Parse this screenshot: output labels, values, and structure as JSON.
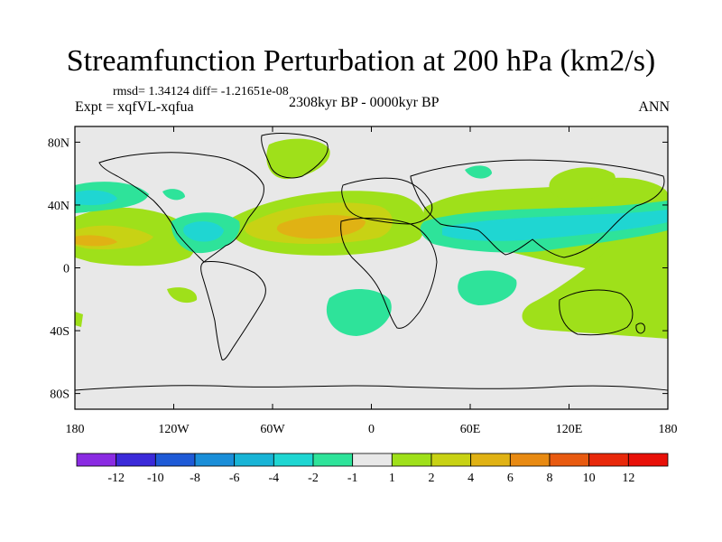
{
  "title": "Streamfunction Perturbation at 200 hPa (km2/s)",
  "stats": "rmsd= 1.34124 diff= -1.21651e-08",
  "experiment": "Expt = xqfVL-xqfua",
  "period": "2308kyr BP - 0000kyr BP",
  "season": "ANN",
  "map_data": {
    "projection": "cylindrical-equidistant",
    "lon_range": [
      -180,
      180
    ],
    "lat_range": [
      -90,
      90
    ],
    "x_ticks": [
      {
        "value": -180,
        "label": "180"
      },
      {
        "value": -120,
        "label": "120W"
      },
      {
        "value": -60,
        "label": "60W"
      },
      {
        "value": 0,
        "label": "0"
      },
      {
        "value": 60,
        "label": "60E"
      },
      {
        "value": 120,
        "label": "120E"
      },
      {
        "value": 180,
        "label": "180"
      }
    ],
    "y_ticks": [
      {
        "value": 80,
        "label": "80N"
      },
      {
        "value": 40,
        "label": "40N"
      },
      {
        "value": 0,
        "label": "0"
      },
      {
        "value": -40,
        "label": "40S"
      },
      {
        "value": -80,
        "label": "80S"
      }
    ]
  },
  "colorbar": {
    "boundaries": [
      "-12",
      "-10",
      "-8",
      "-6",
      "-4",
      "-2",
      "-1",
      "1",
      "2",
      "4",
      "6",
      "8",
      "10",
      "12"
    ],
    "colors": [
      "#8a2be2",
      "#3b2ad9",
      "#1e5ad6",
      "#1a8ed8",
      "#18b4d6",
      "#1fd6d2",
      "#2ee39a",
      "#e8e8e8",
      "#9fe01a",
      "#c8d214",
      "#e0b214",
      "#e88a12",
      "#e85a10",
      "#e8280a",
      "#e81008"
    ]
  },
  "colors": {
    "missing_land_bg": "#e8e8e8",
    "pos1": "#9fe01a",
    "pos2": "#c8d214",
    "pos3": "#e0b214",
    "neg1": "#2ee39a",
    "neg2": "#1fd6d2"
  }
}
